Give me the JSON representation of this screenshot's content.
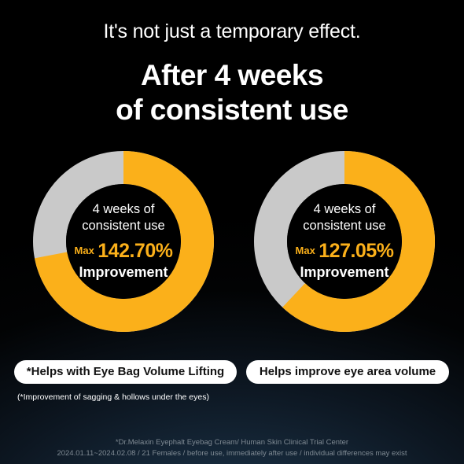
{
  "header": {
    "subtitle": "It's not just a temporary effect.",
    "headline_line1": "After 4 weeks",
    "headline_line2": "of consistent use"
  },
  "stats": [
    {
      "line1": "4 weeks of",
      "line2": "consistent use",
      "max_label": "Max",
      "value_text": "142.70%",
      "improvement_label": "Improvement",
      "fill_fraction": 0.72,
      "pill_label": "*Helps with Eye Bag Volume Lifting"
    },
    {
      "line1": "4 weeks of",
      "line2": "consistent use",
      "max_label": "Max",
      "value_text": "127.05%",
      "improvement_label": "Improvement",
      "fill_fraction": 0.62,
      "pill_label": "Helps improve eye area volume"
    }
  ],
  "note": "(*Improvement of sagging & hollows under the eyes)",
  "footer": {
    "line1": "*Dr.Melaxin Eyephalt Eyebag Cream/ Human Skin Clinical Trial Center",
    "line2": "2024.01.11~2024.02.08 / 21 Females / before use, immediately after use / individual differences may exist"
  },
  "colors": {
    "accent": "#fbb01a",
    "ring_track": "#c9c9c9",
    "center": "#000000",
    "pill_bg": "#ffffff"
  }
}
